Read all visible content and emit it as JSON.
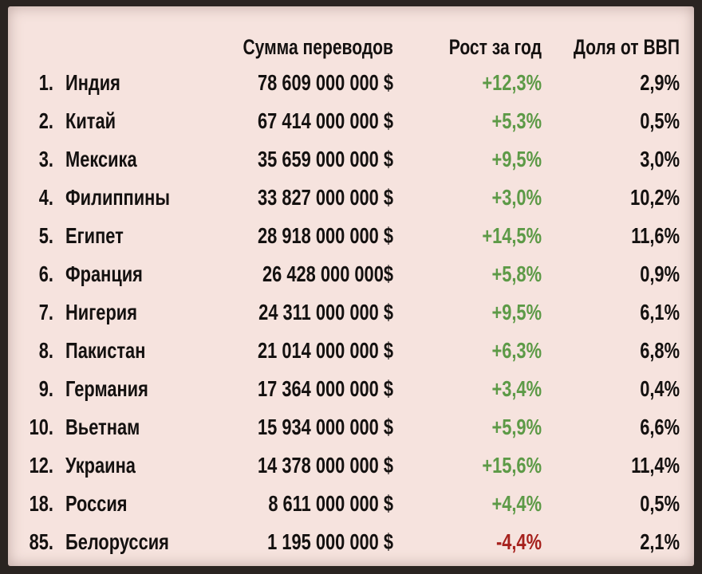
{
  "header": {
    "amount": "Сумма переводов",
    "growth": "Рост за год",
    "gdp_share": "Доля от ВВП"
  },
  "colors": {
    "background": "#f6e3de",
    "frame": "#2a2421",
    "text": "#141110",
    "positive": "#5d9a47",
    "negative": "#a6211d"
  },
  "rows": [
    {
      "rank": "1.",
      "country": "Индия",
      "amount": "78 609 000 000 $",
      "growth": "+12,3%",
      "gdp": "2,9%"
    },
    {
      "rank": "2.",
      "country": "Китай",
      "amount": "67 414 000 000 $",
      "growth": "+5,3%",
      "gdp": "0,5%"
    },
    {
      "rank": "3.",
      "country": "Мексика",
      "amount": "35 659 000 000 $",
      "growth": "+9,5%",
      "gdp": "3,0%"
    },
    {
      "rank": "4.",
      "country": "Филиппины",
      "amount": "33 827 000 000 $",
      "growth": "+3,0%",
      "gdp": "10,2%"
    },
    {
      "rank": "5.",
      "country": "Египет",
      "amount": "28 918 000 000 $",
      "growth": "+14,5%",
      "gdp": "11,6%"
    },
    {
      "rank": "6.",
      "country": "Франция",
      "amount": "26 428 000 000$",
      "growth": "+5,8%",
      "gdp": "0,9%"
    },
    {
      "rank": "7.",
      "country": "Нигерия",
      "amount": "24 311 000 000 $",
      "growth": "+9,5%",
      "gdp": "6,1%"
    },
    {
      "rank": "8.",
      "country": "Пакистан",
      "amount": "21 014 000 000 $",
      "growth": "+6,3%",
      "gdp": "6,8%"
    },
    {
      "rank": "9.",
      "country": "Германия",
      "amount": "17 364 000 000 $",
      "growth": "+3,4%",
      "gdp": "0,4%"
    },
    {
      "rank": "10.",
      "country": "Вьетнам",
      "amount": "15 934 000 000 $",
      "growth": "+5,9%",
      "gdp": "6,6%"
    },
    {
      "rank": "12.",
      "country": "Украина",
      "amount": "14 378 000 000 $",
      "growth": "+15,6%",
      "gdp": "11,4%"
    },
    {
      "rank": "18.",
      "country": "Россия",
      "amount": "8 611 000 000 $",
      "growth": "+4,4%",
      "gdp": "0,5%"
    },
    {
      "rank": "85.",
      "country": "Белоруссия",
      "amount": "1 195 000 000 $",
      "growth": "-4,4%",
      "gdp": "2,1%"
    }
  ]
}
